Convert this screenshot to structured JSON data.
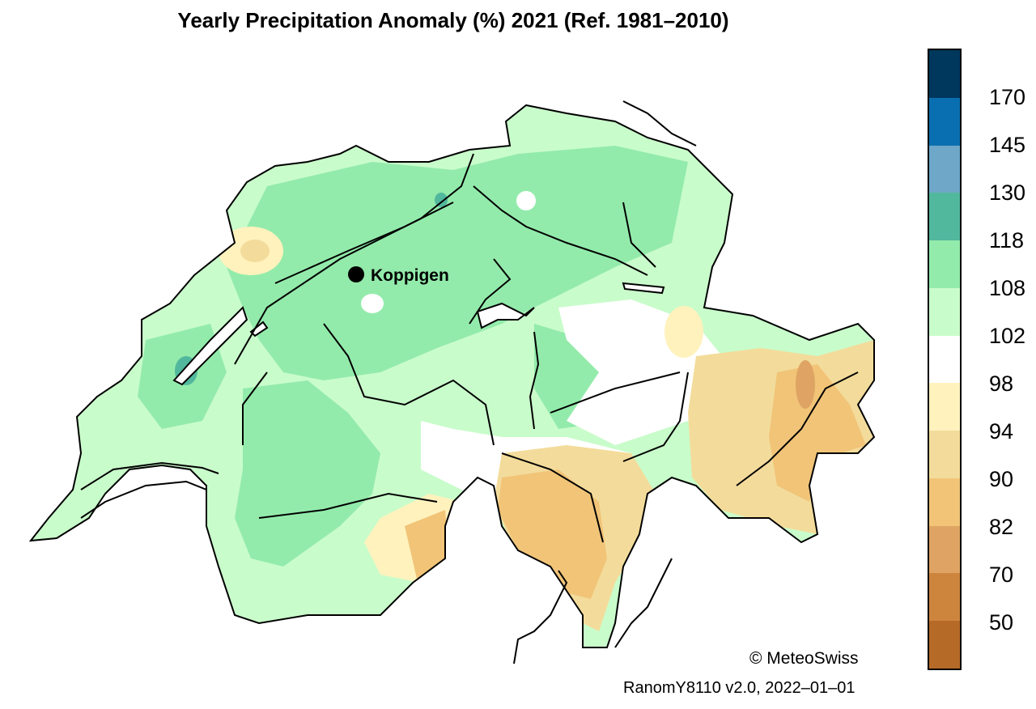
{
  "title": "Yearly Precipitation Anomaly (%) 2021  (Ref. 1981–2010)",
  "station": {
    "name": "Koppigen"
  },
  "legend": {
    "labels": [
      "170",
      "145",
      "130",
      "118",
      "108",
      "102",
      "98",
      "94",
      "90",
      "82",
      "70",
      "50"
    ],
    "colors": [
      "#00375c",
      "#0a6fb0",
      "#6ea7c8",
      "#52b89d",
      "#93ebab",
      "#c9fccb",
      "#ffffff",
      "#fff2bd",
      "#f3dc9b",
      "#f1c478",
      "#dfa463",
      "#cd853e",
      "#b66a28"
    ]
  },
  "credit": "© MeteoSwiss",
  "footer": "RanomY8110 v2.0, 2022–01–01"
}
